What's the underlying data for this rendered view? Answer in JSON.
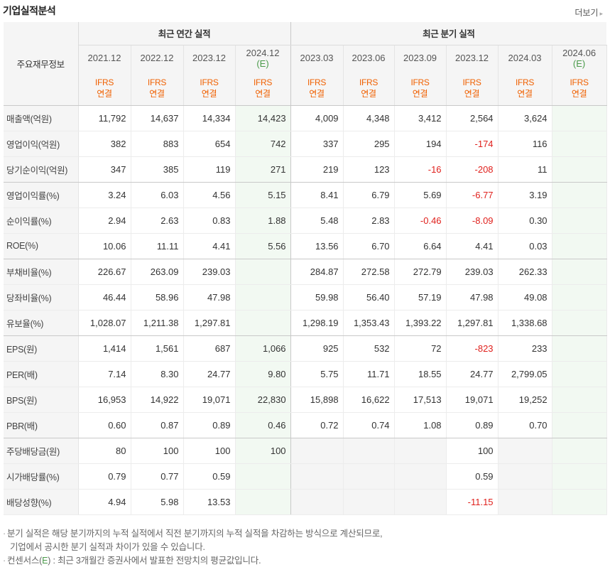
{
  "header": {
    "title": "기업실적분석",
    "more_label": "더보기",
    "more_arrow": "▸"
  },
  "table": {
    "label_header": "주요재무정보",
    "annual_group": "최근 연간 실적",
    "quarter_group": "최근 분기 실적",
    "periods": [
      {
        "label": "2021.12",
        "est": ""
      },
      {
        "label": "2022.12",
        "est": ""
      },
      {
        "label": "2023.12",
        "est": ""
      },
      {
        "label": "2024.12",
        "est": "(E)"
      },
      {
        "label": "2023.03",
        "est": ""
      },
      {
        "label": "2023.06",
        "est": ""
      },
      {
        "label": "2023.09",
        "est": ""
      },
      {
        "label": "2023.12",
        "est": ""
      },
      {
        "label": "2024.03",
        "est": ""
      },
      {
        "label": "2024.06",
        "est": "(E)"
      }
    ],
    "standard": {
      "line1": "IFRS",
      "line2": "연결"
    },
    "rows": [
      {
        "label": "매출액(억원)",
        "values": [
          "11,792",
          "14,637",
          "14,334",
          "14,423",
          "4,009",
          "4,348",
          "3,412",
          "2,564",
          "3,624",
          ""
        ]
      },
      {
        "label": "영업이익(억원)",
        "values": [
          "382",
          "883",
          "654",
          "742",
          "337",
          "295",
          "194",
          "-174",
          "116",
          ""
        ]
      },
      {
        "label": "당기순이익(억원)",
        "values": [
          "347",
          "385",
          "119",
          "271",
          "219",
          "123",
          "-16",
          "-208",
          "11",
          ""
        ]
      },
      {
        "label": "영업이익률(%)",
        "values": [
          "3.24",
          "6.03",
          "4.56",
          "5.15",
          "8.41",
          "6.79",
          "5.69",
          "-6.77",
          "3.19",
          ""
        ]
      },
      {
        "label": "순이익률(%)",
        "values": [
          "2.94",
          "2.63",
          "0.83",
          "1.88",
          "5.48",
          "2.83",
          "-0.46",
          "-8.09",
          "0.30",
          ""
        ]
      },
      {
        "label": "ROE(%)",
        "values": [
          "10.06",
          "11.11",
          "4.41",
          "5.56",
          "13.56",
          "6.70",
          "6.64",
          "4.41",
          "0.03",
          ""
        ]
      },
      {
        "label": "부채비율(%)",
        "values": [
          "226.67",
          "263.09",
          "239.03",
          "",
          "284.87",
          "272.58",
          "272.79",
          "239.03",
          "262.33",
          ""
        ]
      },
      {
        "label": "당좌비율(%)",
        "values": [
          "46.44",
          "58.96",
          "47.98",
          "",
          "59.98",
          "56.40",
          "57.19",
          "47.98",
          "49.08",
          ""
        ]
      },
      {
        "label": "유보율(%)",
        "values": [
          "1,028.07",
          "1,211.38",
          "1,297.81",
          "",
          "1,298.19",
          "1,353.43",
          "1,393.22",
          "1,297.81",
          "1,338.68",
          ""
        ]
      },
      {
        "label": "EPS(원)",
        "values": [
          "1,414",
          "1,561",
          "687",
          "1,066",
          "925",
          "532",
          "72",
          "-823",
          "233",
          ""
        ]
      },
      {
        "label": "PER(배)",
        "values": [
          "7.14",
          "8.30",
          "24.77",
          "9.80",
          "5.75",
          "11.71",
          "18.55",
          "24.77",
          "2,799.05",
          ""
        ]
      },
      {
        "label": "BPS(원)",
        "values": [
          "16,953",
          "14,922",
          "19,071",
          "22,830",
          "15,898",
          "16,622",
          "17,513",
          "19,071",
          "19,252",
          ""
        ]
      },
      {
        "label": "PBR(배)",
        "values": [
          "0.60",
          "0.87",
          "0.89",
          "0.46",
          "0.72",
          "0.74",
          "1.08",
          "0.89",
          "0.70",
          ""
        ]
      },
      {
        "label": "주당배당금(원)",
        "values": [
          "80",
          "100",
          "100",
          "100",
          "",
          "",
          "",
          "100",
          "",
          ""
        ]
      },
      {
        "label": "시가배당률(%)",
        "values": [
          "0.79",
          "0.77",
          "0.59",
          "",
          "",
          "",
          "",
          "0.59",
          "",
          ""
        ]
      },
      {
        "label": "배당성향(%)",
        "values": [
          "4.94",
          "5.98",
          "13.53",
          "",
          "",
          "",
          "",
          "-11.15",
          "",
          ""
        ]
      }
    ]
  },
  "notes": {
    "bullet": "·",
    "line1": "분기 실적은 해당 분기까지의 누적 실적에서 직전 분기까지의 누적 실적을 차감하는 방식으로 계산되므로,",
    "line2": "기업에서 공시한 분기 실적과 차이가 있을 수 있습니다.",
    "line3_pre": "컨센서스(",
    "line3_e": "E",
    "line3_post": ") : 최근 3개월간 증권사에서 발표한 전망치의 평균값입니다."
  },
  "colors": {
    "negative": "#e0201c",
    "ifrs": "#f06000",
    "estimate": "#4a9a4a",
    "estimate_bg": "#f2f9f2"
  }
}
